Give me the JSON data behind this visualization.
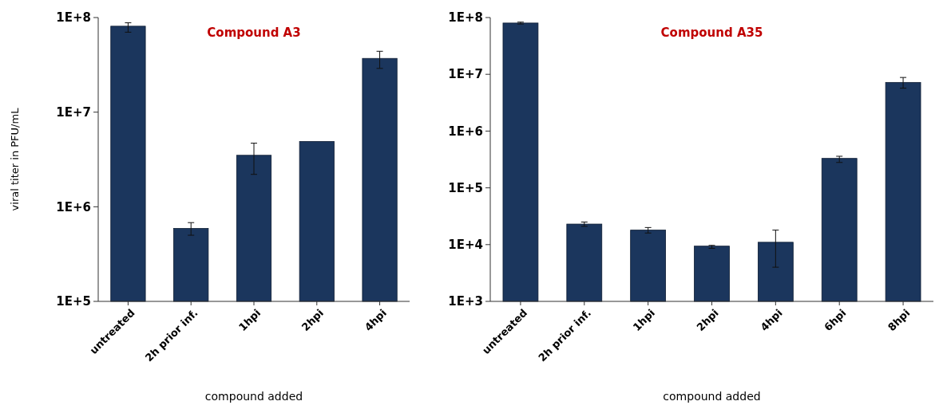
{
  "chart_data": [
    {
      "type": "bar",
      "title": "Compound A3",
      "xlabel": "compound added",
      "ylabel": "viral titer in PFU/mL",
      "categories": [
        "untreated",
        "2h prior inf.",
        "1hpi",
        "2hpi",
        "4hpi"
      ],
      "values": [
        81000000,
        590000,
        3500000,
        4900000,
        37000000
      ],
      "errors": [
        [
          70000000,
          88000000
        ],
        [
          500000,
          680000
        ],
        [
          2200000,
          4700000
        ],
        null,
        [
          29000000,
          44000000
        ]
      ],
      "color": "#1b365d",
      "log": true,
      "ylim": [
        100000,
        100000000
      ],
      "yticks": [
        {
          "value": 100000,
          "label": "1E+5"
        },
        {
          "value": 1000000,
          "label": "1E+6"
        },
        {
          "value": 10000000,
          "label": "1E+7"
        },
        {
          "value": 100000000,
          "label": "1E+8"
        }
      ],
      "grid": false
    },
    {
      "type": "bar",
      "title": "Compound A35",
      "xlabel": "compound added",
      "categories": [
        "untreated",
        "2h prior inf.",
        "1hpi",
        "2hpi",
        "4hpi",
        "6hpi",
        "8hpi"
      ],
      "values": [
        80000000,
        23000,
        18000,
        9400,
        11000,
        330000,
        7200000
      ],
      "errors": [
        [
          77000000,
          83000000
        ],
        [
          21000,
          25000
        ],
        [
          16000,
          20000
        ],
        [
          8600,
          9700
        ],
        [
          4000,
          18000
        ],
        [
          280000,
          360000
        ],
        [
          5700000,
          8800000
        ]
      ],
      "color": "#1b365d",
      "log": true,
      "ylim": [
        1000,
        100000000
      ],
      "yticks": [
        {
          "value": 1000,
          "label": "1E+3"
        },
        {
          "value": 10000,
          "label": "1E+4"
        },
        {
          "value": 100000,
          "label": "1E+5"
        },
        {
          "value": 1000000,
          "label": "1E+6"
        },
        {
          "value": 10000000,
          "label": "1E+7"
        },
        {
          "value": 100000000,
          "label": "1E+8"
        }
      ],
      "grid": false
    }
  ]
}
